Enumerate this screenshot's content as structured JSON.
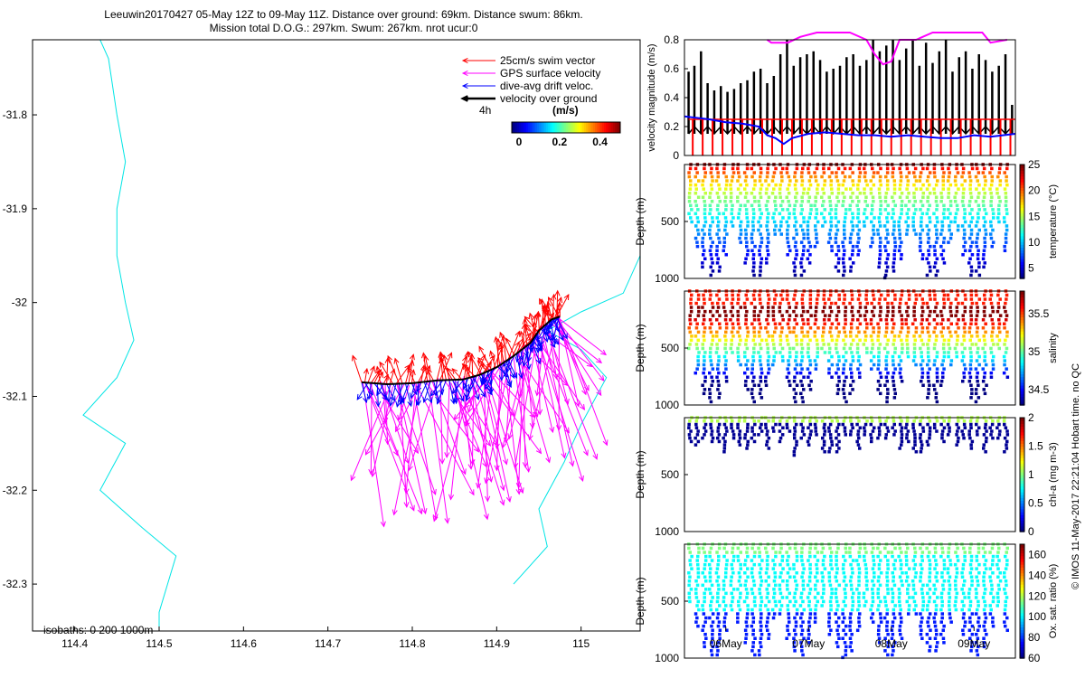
{
  "header": {
    "line1": "Leeuwin20170427 05-May 12Z to 09-May 11Z. Distance over ground: 69km. Distance swum: 86km.",
    "line2": "Mission total D.O.G.: 297km. Swum: 267km. nrot ucur:0"
  },
  "side_label": "© IMOS 11-May-2017 22:21:04 Hobart time. no QC",
  "map": {
    "legend": [
      "25cm/s swim vector",
      "GPS surface velocity",
      "dive-avg drift veloc.",
      "velocity over ground"
    ],
    "legend_colors": [
      "#ff0000",
      "#ff00ff",
      "#0000ff",
      "#000000"
    ],
    "arrow_time": "4h",
    "colorbar_title": "(m/s)",
    "colorbar_ticks": [
      "0",
      "0.2",
      "0.4"
    ],
    "isobaths": "isobaths: 0   200  1000m",
    "isobath_color": "#00e5e5"
  },
  "time_ticks": [
    "06May",
    "07May",
    "08May",
    "09May"
  ],
  "chart_data": [
    {
      "type": "line",
      "name": "map",
      "x_ticks": [
        "114.4",
        "114.5",
        "114.6",
        "114.7",
        "114.8",
        "114.9",
        "115"
      ],
      "y_ticks": [
        "-31.8",
        "-31.9",
        "-32",
        "-32.1",
        "-32.2",
        "-32.3"
      ],
      "xlim": [
        114.35,
        115.07
      ],
      "ylim": [
        -32.35,
        -31.72
      ],
      "track": [
        [
          114.74,
          -32.085
        ],
        [
          114.77,
          -32.087
        ],
        [
          114.8,
          -32.086
        ],
        [
          114.83,
          -32.083
        ],
        [
          114.86,
          -32.082
        ],
        [
          114.88,
          -32.077
        ],
        [
          114.9,
          -32.069
        ],
        [
          114.92,
          -32.057
        ],
        [
          114.94,
          -32.043
        ],
        [
          114.95,
          -32.03
        ],
        [
          114.965,
          -32.018
        ],
        [
          114.975,
          -32.015
        ]
      ],
      "isobath_west": [
        [
          114.43,
          -31.72
        ],
        [
          114.44,
          -31.74
        ],
        [
          114.45,
          -31.8
        ],
        [
          114.46,
          -31.85
        ],
        [
          114.45,
          -31.9
        ],
        [
          114.45,
          -31.95
        ],
        [
          114.46,
          -32.0
        ],
        [
          114.47,
          -32.04
        ],
        [
          114.45,
          -32.08
        ],
        [
          114.41,
          -32.12
        ],
        [
          114.46,
          -32.15
        ],
        [
          114.43,
          -32.2
        ],
        [
          114.48,
          -32.24
        ],
        [
          114.52,
          -32.27
        ],
        [
          114.5,
          -32.33
        ],
        [
          114.5,
          -32.36
        ]
      ],
      "isobath_east": [
        [
          115.07,
          -31.95
        ],
        [
          115.05,
          -31.99
        ],
        [
          115.0,
          -32.01
        ],
        [
          114.96,
          -32.03
        ],
        [
          115.0,
          -32.05
        ],
        [
          115.03,
          -32.08
        ],
        [
          115.0,
          -32.13
        ],
        [
          114.98,
          -32.17
        ],
        [
          114.95,
          -32.22
        ],
        [
          114.96,
          -32.26
        ],
        [
          114.92,
          -32.3
        ]
      ]
    },
    {
      "type": "line",
      "name": "velocity",
      "ylabel": "velocity magnitude (m/s)",
      "ylim": [
        0,
        0.8
      ],
      "y_ticks": [
        "0",
        "0.2",
        "0.4",
        "0.6",
        "0.8"
      ],
      "xlim": [
        5.5,
        9.5
      ],
      "series": [
        {
          "color": "#000000",
          "x": [
            5.55,
            5.62,
            5.7,
            5.78,
            5.86,
            5.94,
            6.02,
            6.1,
            6.18,
            6.26,
            6.34,
            6.42,
            6.5,
            6.58,
            6.66,
            6.74,
            6.82,
            6.9,
            6.98,
            7.06,
            7.14,
            7.22,
            7.3,
            7.38,
            7.46,
            7.54,
            7.62,
            7.7,
            7.78,
            7.86,
            7.94,
            8.02,
            8.1,
            8.18,
            8.26,
            8.34,
            8.42,
            8.5,
            8.58,
            8.66,
            8.74,
            8.82,
            8.9,
            8.98,
            9.06,
            9.14,
            9.22,
            9.3,
            9.38,
            9.46
          ],
          "y": [
            0.58,
            0.62,
            0.72,
            0.5,
            0.45,
            0.48,
            0.44,
            0.46,
            0.5,
            0.52,
            0.58,
            0.6,
            0.5,
            0.55,
            0.7,
            0.8,
            0.62,
            0.68,
            0.7,
            0.72,
            0.66,
            0.58,
            0.6,
            0.62,
            0.68,
            0.7,
            0.62,
            0.66,
            0.8,
            0.72,
            0.76,
            0.8,
            0.66,
            0.74,
            0.8,
            0.62,
            0.78,
            0.64,
            0.72,
            0.8,
            0.58,
            0.68,
            0.72,
            0.6,
            0.7,
            0.66,
            0.58,
            0.62,
            0.7,
            0.35
          ]
        },
        {
          "color": "#ff0000",
          "x": [
            5.55,
            9.5
          ],
          "y": [
            0.25,
            0.25
          ]
        },
        {
          "color": "#0000ff",
          "x": [
            5.5,
            5.8,
            6.0,
            6.2,
            6.4,
            6.5,
            6.6,
            6.7,
            6.8,
            7.0,
            7.2,
            7.4,
            7.6,
            7.8,
            8.0,
            8.2,
            8.4,
            8.6,
            8.8,
            9.0,
            9.2,
            9.5
          ],
          "y": [
            0.27,
            0.25,
            0.23,
            0.22,
            0.2,
            0.14,
            0.12,
            0.08,
            0.12,
            0.15,
            0.16,
            0.15,
            0.14,
            0.14,
            0.13,
            0.14,
            0.13,
            0.12,
            0.12,
            0.14,
            0.13,
            0.15
          ]
        },
        {
          "color": "#ff00ff",
          "x": [
            6.5,
            6.55,
            6.75,
            6.9,
            7.1,
            7.3,
            7.5,
            7.7,
            7.8,
            7.9,
            8.0,
            8.1,
            8.3,
            8.5,
            8.7,
            8.9,
            9.1,
            9.2,
            9.4
          ],
          "y": [
            0.8,
            0.78,
            0.78,
            0.82,
            0.85,
            0.85,
            0.85,
            0.8,
            0.7,
            0.63,
            0.65,
            0.8,
            0.8,
            0.85,
            0.85,
            0.85,
            0.85,
            0.78,
            0.8
          ]
        }
      ]
    },
    {
      "type": "scatter",
      "name": "temperature",
      "ylabel": "Depth (m)",
      "y_ticks": [
        "500",
        "1000"
      ],
      "ylim": [
        1000,
        0
      ],
      "colorbar_label": "temperature (°C)",
      "colorbar_ticks": [
        "5",
        "10",
        "15",
        "20",
        "25"
      ],
      "clim": [
        3,
        25
      ]
    },
    {
      "type": "scatter",
      "name": "salinity",
      "ylabel": "Depth (m)",
      "y_ticks": [
        "500",
        "1000"
      ],
      "ylim": [
        1000,
        0
      ],
      "colorbar_label": "salinity",
      "colorbar_ticks": [
        "34.5",
        "35",
        "35.5"
      ],
      "clim": [
        34.3,
        35.8
      ]
    },
    {
      "type": "scatter",
      "name": "chl-a",
      "ylabel": "Depth (m)",
      "y_ticks": [
        "500",
        "1000"
      ],
      "ylim": [
        1000,
        0
      ],
      "colorbar_label": "chl-a (mg m-3)",
      "colorbar_ticks": [
        "0",
        "0.5",
        "1",
        "1.5",
        "2"
      ],
      "clim": [
        0,
        2
      ]
    },
    {
      "type": "scatter",
      "name": "oxygen",
      "ylabel": "Depth (m)",
      "y_ticks": [
        "500",
        "1000"
      ],
      "ylim": [
        1000,
        0
      ],
      "colorbar_label": "Ox. sat. ratio (%)",
      "colorbar_ticks": [
        "60",
        "80",
        "100",
        "120",
        "140",
        "160"
      ],
      "clim": [
        60,
        170
      ]
    }
  ]
}
